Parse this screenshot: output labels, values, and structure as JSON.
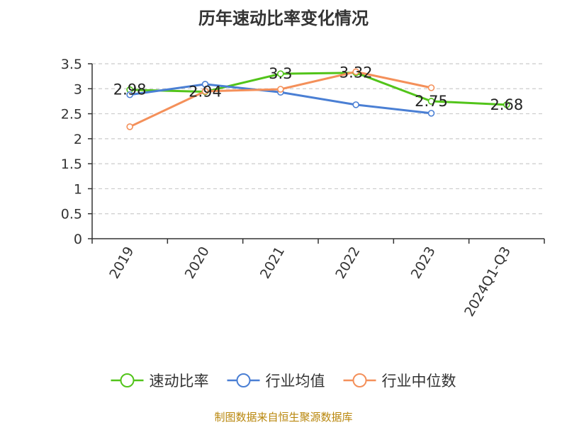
{
  "chart_data": {
    "type": "line",
    "title": "历年速动比率变化情况",
    "categories": [
      "2019",
      "2020",
      "2021",
      "2022",
      "2023",
      "2024Q1-Q3"
    ],
    "ylim": [
      0,
      3.5
    ],
    "yticks": [
      "0",
      "0.5",
      "1",
      "1.5",
      "2",
      "2.5",
      "3",
      "3.5"
    ],
    "grid": true,
    "legend_position": "bottom",
    "series": [
      {
        "name": "速动比率",
        "color": "#52c41a",
        "values": [
          2.98,
          2.94,
          3.3,
          3.32,
          2.75,
          2.68
        ],
        "labels": [
          "2.98",
          "2.94",
          "3.3",
          "3.32",
          "2.75",
          "2.68"
        ]
      },
      {
        "name": "行业均值",
        "color": "#4a7fd4",
        "values": [
          2.88,
          3.09,
          2.93,
          2.68,
          2.51,
          null
        ]
      },
      {
        "name": "行业中位数",
        "color": "#f4905a",
        "values": [
          2.24,
          2.95,
          2.99,
          3.34,
          3.02,
          null
        ]
      }
    ]
  },
  "source": "制图数据来自恒生聚源数据库"
}
